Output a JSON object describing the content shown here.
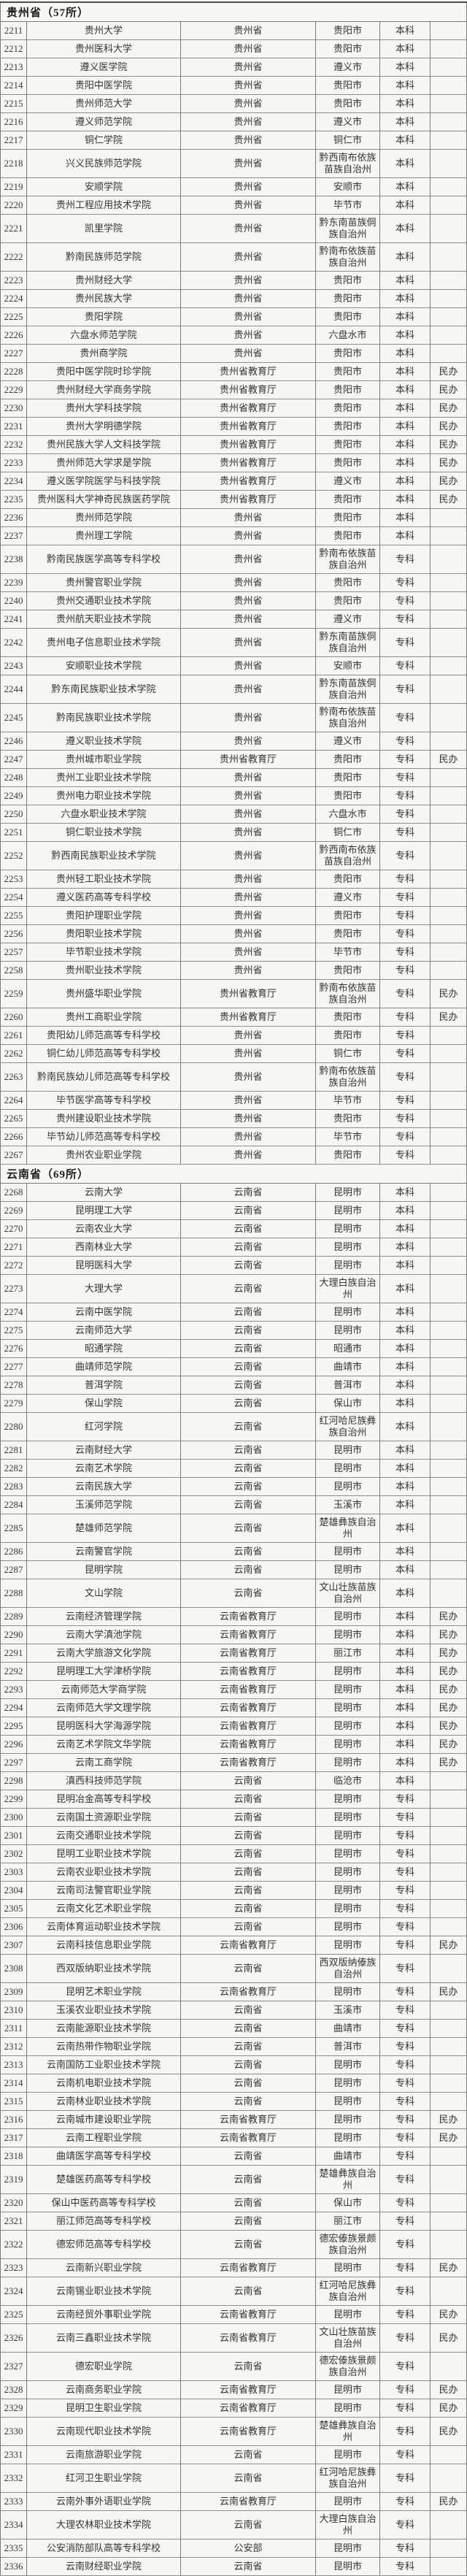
{
  "colors": {
    "grid": "#7a7a7a",
    "text": "#333331",
    "background": "#f5f5f3",
    "header_text": "#1f1f1f"
  },
  "table": {
    "sections": [
      {
        "title": "贵州省（57所）",
        "rows": [
          [
            "2211",
            "贵州大学",
            "贵州省",
            "贵阳市",
            "本科",
            ""
          ],
          [
            "2212",
            "贵州医科大学",
            "贵州省",
            "贵阳市",
            "本科",
            ""
          ],
          [
            "2213",
            "遵义医学院",
            "贵州省",
            "遵义市",
            "本科",
            ""
          ],
          [
            "2214",
            "贵阳中医学院",
            "贵州省",
            "贵阳市",
            "本科",
            ""
          ],
          [
            "2215",
            "贵州师范大学",
            "贵州省",
            "贵阳市",
            "本科",
            ""
          ],
          [
            "2216",
            "遵义师范学院",
            "贵州省",
            "遵义市",
            "本科",
            ""
          ],
          [
            "2217",
            "铜仁学院",
            "贵州省",
            "铜仁市",
            "本科",
            ""
          ],
          [
            "2218",
            "兴义民族师范学院",
            "贵州省",
            "黔西南布依族苗族自治州",
            "本科",
            ""
          ],
          [
            "2219",
            "安顺学院",
            "贵州省",
            "安顺市",
            "本科",
            ""
          ],
          [
            "2220",
            "贵州工程应用技术学院",
            "贵州省",
            "毕节市",
            "本科",
            ""
          ],
          [
            "2221",
            "凯里学院",
            "贵州省",
            "黔东南苗族侗族自治州",
            "本科",
            ""
          ],
          [
            "2222",
            "黔南民族师范学院",
            "贵州省",
            "黔南布依族苗族自治州",
            "本科",
            ""
          ],
          [
            "2223",
            "贵州财经大学",
            "贵州省",
            "贵阳市",
            "本科",
            ""
          ],
          [
            "2224",
            "贵州民族大学",
            "贵州省",
            "贵阳市",
            "本科",
            ""
          ],
          [
            "2225",
            "贵阳学院",
            "贵州省",
            "贵阳市",
            "本科",
            ""
          ],
          [
            "2226",
            "六盘水师范学院",
            "贵州省",
            "六盘水市",
            "本科",
            ""
          ],
          [
            "2227",
            "贵州商学院",
            "贵州省",
            "贵阳市",
            "本科",
            ""
          ],
          [
            "2228",
            "贵阳中医学院时珍学院",
            "贵州省教育厅",
            "贵阳市",
            "本科",
            "民办"
          ],
          [
            "2229",
            "贵州财经大学商务学院",
            "贵州省教育厅",
            "贵阳市",
            "本科",
            "民办"
          ],
          [
            "2230",
            "贵州大学科技学院",
            "贵州省教育厅",
            "贵阳市",
            "本科",
            "民办"
          ],
          [
            "2231",
            "贵州大学明德学院",
            "贵州省教育厅",
            "贵阳市",
            "本科",
            "民办"
          ],
          [
            "2232",
            "贵州民族大学人文科技学院",
            "贵州省教育厅",
            "贵阳市",
            "本科",
            "民办"
          ],
          [
            "2233",
            "贵州师范大学求是学院",
            "贵州省教育厅",
            "贵阳市",
            "本科",
            "民办"
          ],
          [
            "2234",
            "遵义医学院医学与科技学院",
            "贵州省教育厅",
            "遵义市",
            "本科",
            "民办"
          ],
          [
            "2235",
            "贵州医科大学神奇民族医药学院",
            "贵州省教育厅",
            "贵阳市",
            "本科",
            "民办"
          ],
          [
            "2236",
            "贵州师范学院",
            "贵州省",
            "贵阳市",
            "本科",
            ""
          ],
          [
            "2237",
            "贵州理工学院",
            "贵州省",
            "贵阳市",
            "本科",
            ""
          ],
          [
            "2238",
            "黔南民族医学高等专科学校",
            "贵州省",
            "黔南布依族苗族自治州",
            "专科",
            ""
          ],
          [
            "2239",
            "贵州警官职业学院",
            "贵州省",
            "贵阳市",
            "专科",
            ""
          ],
          [
            "2240",
            "贵州交通职业技术学院",
            "贵州省",
            "贵阳市",
            "专科",
            ""
          ],
          [
            "2241",
            "贵州航天职业技术学院",
            "贵州省",
            "遵义市",
            "专科",
            ""
          ],
          [
            "2242",
            "贵州电子信息职业技术学院",
            "贵州省",
            "黔东南苗族侗族自治州",
            "专科",
            ""
          ],
          [
            "2243",
            "安顺职业技术学院",
            "贵州省",
            "安顺市",
            "专科",
            ""
          ],
          [
            "2244",
            "黔东南民族职业技术学院",
            "贵州省",
            "黔东南苗族侗族自治州",
            "专科",
            ""
          ],
          [
            "2245",
            "黔南民族职业技术学院",
            "贵州省",
            "黔南布依族苗族自治州",
            "专科",
            ""
          ],
          [
            "2246",
            "遵义职业技术学院",
            "贵州省",
            "遵义市",
            "专科",
            ""
          ],
          [
            "2247",
            "贵州城市职业学院",
            "贵州省教育厅",
            "贵阳市",
            "专科",
            "民办"
          ],
          [
            "2248",
            "贵州工业职业技术学院",
            "贵州省",
            "贵阳市",
            "专科",
            ""
          ],
          [
            "2249",
            "贵州电力职业技术学院",
            "贵州省",
            "贵阳市",
            "专科",
            ""
          ],
          [
            "2250",
            "六盘水职业技术学院",
            "贵州省",
            "六盘水市",
            "专科",
            ""
          ],
          [
            "2251",
            "铜仁职业技术学院",
            "贵州省",
            "铜仁市",
            "专科",
            ""
          ],
          [
            "2252",
            "黔西南民族职业技术学院",
            "贵州省",
            "黔西南布依族苗族自治州",
            "专科",
            ""
          ],
          [
            "2253",
            "贵州轻工职业技术学院",
            "贵州省",
            "贵阳市",
            "专科",
            ""
          ],
          [
            "2254",
            "遵义医药高等专科学校",
            "贵州省",
            "遵义市",
            "专科",
            ""
          ],
          [
            "2255",
            "贵阳护理职业学院",
            "贵州省",
            "贵阳市",
            "专科",
            ""
          ],
          [
            "2256",
            "贵阳职业技术学院",
            "贵州省",
            "贵阳市",
            "专科",
            ""
          ],
          [
            "2257",
            "毕节职业技术学院",
            "贵州省",
            "毕节市",
            "专科",
            ""
          ],
          [
            "2258",
            "贵州职业技术学院",
            "贵州省",
            "贵阳市",
            "专科",
            ""
          ],
          [
            "2259",
            "贵州盛华职业学院",
            "贵州省教育厅",
            "黔南布依族苗族自治州",
            "专科",
            "民办"
          ],
          [
            "2260",
            "贵州工商职业学院",
            "贵州省教育厅",
            "贵阳市",
            "专科",
            "民办"
          ],
          [
            "2261",
            "贵阳幼儿师范高等专科学校",
            "贵州省",
            "贵阳市",
            "专科",
            ""
          ],
          [
            "2262",
            "铜仁幼儿师范高等专科学校",
            "贵州省",
            "铜仁市",
            "专科",
            ""
          ],
          [
            "2263",
            "黔南民族幼儿师范高等专科学校",
            "贵州省",
            "黔南布依族苗族自治州",
            "专科",
            ""
          ],
          [
            "2264",
            "毕节医学高等专科学校",
            "贵州省",
            "毕节市",
            "专科",
            ""
          ],
          [
            "2265",
            "贵州建设职业技术学院",
            "贵州省",
            "贵阳市",
            "专科",
            ""
          ],
          [
            "2266",
            "毕节幼儿师范高等专科学校",
            "贵州省",
            "毕节市",
            "专科",
            ""
          ],
          [
            "2267",
            "贵州农业职业学院",
            "贵州省",
            "贵阳市",
            "专科",
            ""
          ]
        ]
      },
      {
        "title": "云南省（69所）",
        "rows": [
          [
            "2268",
            "云南大学",
            "云南省",
            "昆明市",
            "本科",
            ""
          ],
          [
            "2269",
            "昆明理工大学",
            "云南省",
            "昆明市",
            "本科",
            ""
          ],
          [
            "2270",
            "云南农业大学",
            "云南省",
            "昆明市",
            "本科",
            ""
          ],
          [
            "2271",
            "西南林业大学",
            "云南省",
            "昆明市",
            "本科",
            ""
          ],
          [
            "2272",
            "昆明医科大学",
            "云南省",
            "昆明市",
            "本科",
            ""
          ],
          [
            "2273",
            "大理大学",
            "云南省",
            "大理白族自治州",
            "本科",
            ""
          ],
          [
            "2274",
            "云南中医学院",
            "云南省",
            "昆明市",
            "本科",
            ""
          ],
          [
            "2275",
            "云南师范大学",
            "云南省",
            "昆明市",
            "本科",
            ""
          ],
          [
            "2276",
            "昭通学院",
            "云南省",
            "昭通市",
            "本科",
            ""
          ],
          [
            "2277",
            "曲靖师范学院",
            "云南省",
            "曲靖市",
            "本科",
            ""
          ],
          [
            "2278",
            "普洱学院",
            "云南省",
            "普洱市",
            "本科",
            ""
          ],
          [
            "2279",
            "保山学院",
            "云南省",
            "保山市",
            "本科",
            ""
          ],
          [
            "2280",
            "红河学院",
            "云南省",
            "红河哈尼族彝族自治州",
            "本科",
            ""
          ],
          [
            "2281",
            "云南财经大学",
            "云南省",
            "昆明市",
            "本科",
            ""
          ],
          [
            "2282",
            "云南艺术学院",
            "云南省",
            "昆明市",
            "本科",
            ""
          ],
          [
            "2283",
            "云南民族大学",
            "云南省",
            "昆明市",
            "本科",
            ""
          ],
          [
            "2284",
            "玉溪师范学院",
            "云南省",
            "玉溪市",
            "本科",
            ""
          ],
          [
            "2285",
            "楚雄师范学院",
            "云南省",
            "楚雄彝族自治州",
            "本科",
            ""
          ],
          [
            "2286",
            "云南警官学院",
            "云南省",
            "昆明市",
            "本科",
            ""
          ],
          [
            "2287",
            "昆明学院",
            "云南省",
            "昆明市",
            "本科",
            ""
          ],
          [
            "2288",
            "文山学院",
            "云南省",
            "文山壮族苗族自治州",
            "本科",
            ""
          ],
          [
            "2289",
            "云南经济管理学院",
            "云南省教育厅",
            "昆明市",
            "本科",
            "民办"
          ],
          [
            "2290",
            "云南大学滇池学院",
            "云南省教育厅",
            "昆明市",
            "本科",
            "民办"
          ],
          [
            "2291",
            "云南大学旅游文化学院",
            "云南省教育厅",
            "丽江市",
            "本科",
            "民办"
          ],
          [
            "2292",
            "昆明理工大学津桥学院",
            "云南省教育厅",
            "昆明市",
            "本科",
            "民办"
          ],
          [
            "2293",
            "云南师范大学商学院",
            "云南省教育厅",
            "昆明市",
            "本科",
            "民办"
          ],
          [
            "2294",
            "云南师范大学文理学院",
            "云南省教育厅",
            "昆明市",
            "本科",
            "民办"
          ],
          [
            "2295",
            "昆明医科大学海源学院",
            "云南省教育厅",
            "昆明市",
            "本科",
            "民办"
          ],
          [
            "2296",
            "云南艺术学院文华学院",
            "云南省教育厅",
            "昆明市",
            "本科",
            "民办"
          ],
          [
            "2297",
            "云南工商学院",
            "云南省教育厅",
            "昆明市",
            "本科",
            "民办"
          ],
          [
            "2298",
            "滇西科技师范学院",
            "云南省",
            "临沧市",
            "本科",
            ""
          ],
          [
            "2299",
            "昆明冶金高等专科学校",
            "云南省",
            "昆明市",
            "专科",
            ""
          ],
          [
            "2300",
            "云南国土资源职业学院",
            "云南省",
            "昆明市",
            "专科",
            ""
          ],
          [
            "2301",
            "云南交通职业技术学院",
            "云南省",
            "昆明市",
            "专科",
            ""
          ],
          [
            "2302",
            "昆明工业职业技术学院",
            "云南省",
            "昆明市",
            "专科",
            ""
          ],
          [
            "2303",
            "云南农业职业技术学院",
            "云南省",
            "昆明市",
            "专科",
            ""
          ],
          [
            "2304",
            "云南司法警官职业学院",
            "云南省",
            "昆明市",
            "专科",
            ""
          ],
          [
            "2305",
            "云南文化艺术职业学院",
            "云南省",
            "昆明市",
            "专科",
            ""
          ],
          [
            "2306",
            "云南体育运动职业技术学院",
            "云南省",
            "昆明市",
            "专科",
            ""
          ],
          [
            "2307",
            "云南科技信息职业学院",
            "云南省教育厅",
            "昆明市",
            "专科",
            "民办"
          ],
          [
            "2308",
            "西双版纳职业技术学院",
            "云南省",
            "西双版纳傣族自治州",
            "专科",
            ""
          ],
          [
            "2309",
            "昆明艺术职业学院",
            "云南省教育厅",
            "昆明市",
            "专科",
            "民办"
          ],
          [
            "2310",
            "玉溪农业职业技术学院",
            "云南省",
            "玉溪市",
            "专科",
            ""
          ],
          [
            "2311",
            "云南能源职业技术学院",
            "云南省",
            "曲靖市",
            "专科",
            ""
          ],
          [
            "2312",
            "云南热带作物职业学院",
            "云南省",
            "普洱市",
            "专科",
            ""
          ],
          [
            "2313",
            "云南国防工业职业技术学院",
            "云南省",
            "昆明市",
            "专科",
            ""
          ],
          [
            "2314",
            "云南机电职业技术学院",
            "云南省",
            "昆明市",
            "专科",
            ""
          ],
          [
            "2315",
            "云南林业职业技术学院",
            "云南省",
            "昆明市",
            "专科",
            ""
          ],
          [
            "2316",
            "云南城市建设职业学院",
            "云南省教育厅",
            "昆明市",
            "专科",
            "民办"
          ],
          [
            "2317",
            "云南工程职业学院",
            "云南省教育厅",
            "昆明市",
            "专科",
            "民办"
          ],
          [
            "2318",
            "曲靖医学高等专科学校",
            "云南省",
            "曲靖市",
            "专科",
            ""
          ],
          [
            "2319",
            "楚雄医药高等专科学校",
            "云南省",
            "楚雄彝族自治州",
            "专科",
            ""
          ],
          [
            "2320",
            "保山中医药高等专科学校",
            "云南省",
            "保山市",
            "专科",
            ""
          ],
          [
            "2321",
            "丽江师范高等专科学校",
            "云南省",
            "丽江市",
            "专科",
            ""
          ],
          [
            "2322",
            "德宏师范高等专科学校",
            "云南省",
            "德宏傣族景颇族自治州",
            "专科",
            ""
          ],
          [
            "2323",
            "云南新兴职业学院",
            "云南省教育厅",
            "昆明市",
            "专科",
            "民办"
          ],
          [
            "2324",
            "云南锡业职业技术学院",
            "云南省",
            "红河哈尼族彝族自治州",
            "专科",
            ""
          ],
          [
            "2325",
            "云南经贸外事职业学院",
            "云南省教育厅",
            "昆明市",
            "专科",
            "民办"
          ],
          [
            "2326",
            "云南三鑫职业技术学院",
            "云南省教育厅",
            "文山壮族苗族自治州",
            "专科",
            "民办"
          ],
          [
            "2327",
            "德宏职业学院",
            "云南省",
            "德宏傣族景颇族自治州",
            "专科",
            ""
          ],
          [
            "2328",
            "云南商务职业学院",
            "云南省教育厅",
            "昆明市",
            "专科",
            "民办"
          ],
          [
            "2329",
            "昆明卫生职业学院",
            "云南省教育厅",
            "昆明市",
            "专科",
            "民办"
          ],
          [
            "2330",
            "云南现代职业技术学院",
            "云南省教育厅",
            "楚雄彝族自治州",
            "专科",
            "民办"
          ],
          [
            "2331",
            "云南旅游职业学院",
            "云南省",
            "昆明市",
            "专科",
            ""
          ],
          [
            "2332",
            "红河卫生职业学院",
            "云南省",
            "红河哈尼族彝族自治州",
            "专科",
            ""
          ],
          [
            "2333",
            "云南外事外语职业学院",
            "云南省教育厅",
            "昆明市",
            "专科",
            "民办"
          ],
          [
            "2334",
            "大理农林职业技术学院",
            "云南省",
            "大理白族自治州",
            "专科",
            ""
          ],
          [
            "2335",
            "公安消防部队高等专科学校",
            "公安部",
            "昆明市",
            "专科",
            ""
          ],
          [
            "2336",
            "云南财经职业学院",
            "云南省",
            "昆明市",
            "专科",
            ""
          ]
        ]
      }
    ]
  }
}
